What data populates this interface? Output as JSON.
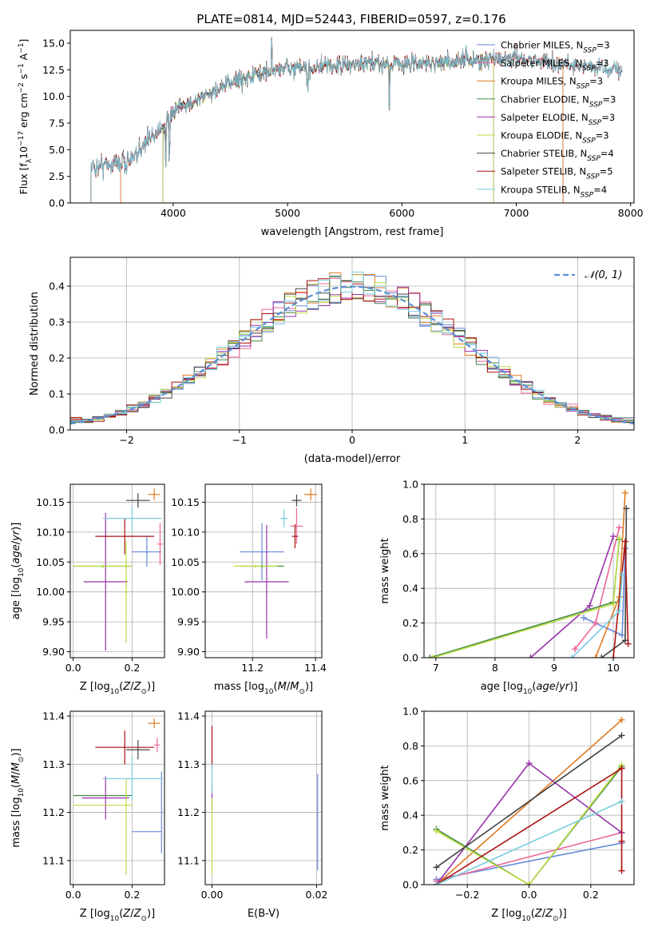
{
  "title": "PLATE=0814, MJD=52443, FIBERID=0597, z=0.176",
  "colors": {
    "chabrier_miles": "#6688dd",
    "salpeter_miles": "#ee6699",
    "kroupa_miles": "#e07a20",
    "chabrier_elodie": "#448844",
    "salpeter_elodie": "#9933aa",
    "kroupa_elodie": "#bbdd44",
    "chabrier_stelib": "#444444",
    "salpeter_stelib": "#aa1111",
    "kroupa_stelib": "#77ccdd",
    "normal_curve": "#5b8fd6"
  },
  "chart_data": [
    {
      "id": "spectrum",
      "type": "line",
      "xlabel": "wavelength [Angstrom, rest frame]",
      "ylabel": "Flux [f_λ 10^-17 erg cm^-2 s^-1 A^-1]",
      "xlim": [
        3100,
        8030
      ],
      "ylim": [
        0,
        16.2
      ],
      "xticks": [
        4000,
        5000,
        6000,
        7000,
        8000
      ],
      "yticks": [
        0.0,
        2.5,
        5.0,
        7.5,
        10.0,
        12.5,
        15.0
      ],
      "grid": false,
      "legend_position": "top-right",
      "data_range": [
        3280,
        7930
      ],
      "series": [
        {
          "name": "Chabrier MILES, N_SSP=3",
          "start": 3540,
          "end": 7410
        },
        {
          "name": "Salpeter MILES, N_SSP=3",
          "start": 3540,
          "end": 7410
        },
        {
          "name": "Kroupa MILES, N_SSP=3",
          "start": 3540,
          "end": 7410
        },
        {
          "name": "Chabrier ELODIE, N_SSP=3",
          "start": 3910,
          "end": 6800
        },
        {
          "name": "Salpeter ELODIE, N_SSP=3",
          "start": 3910,
          "end": 6800
        },
        {
          "name": "Kroupa ELODIE, N_SSP=3",
          "start": 3910,
          "end": 6800
        },
        {
          "name": "Chabrier STELIB, N_SSP=4",
          "start": 3280,
          "end": 7930
        },
        {
          "name": "Salpeter STELIB, N_SSP=5",
          "start": 3280,
          "end": 7930
        },
        {
          "name": "Kroupa STELIB, N_SSP=4",
          "start": 3280,
          "end": 7930
        }
      ]
    },
    {
      "id": "residuals",
      "type": "histogram",
      "xlabel": "(data-model)/error",
      "ylabel": "Normed distribution",
      "xlim": [
        -2.5,
        2.5
      ],
      "ylim": [
        0,
        0.48
      ],
      "xticks": [
        -2,
        -1,
        0,
        1,
        2
      ],
      "yticks": [
        0.0,
        0.1,
        0.2,
        0.3,
        0.4
      ],
      "grid": true,
      "legend_position": "top-right",
      "bin_width": 0.1,
      "overlay": "N(0,1)",
      "legend_label": "𝒩(0, 1)"
    },
    {
      "id": "age_vs_Z",
      "type": "errorbar",
      "xlabel": "Z [log10(Z/Z⊙)]",
      "ylabel": "age [log10(age/yr)]",
      "xlim": [
        -0.01,
        0.31
      ],
      "ylim": [
        9.89,
        10.18
      ],
      "xticks": [
        0.0,
        0.2
      ],
      "xticklabels": [
        "0.0",
        "0.2"
      ],
      "yticks": [
        9.9,
        9.95,
        10.0,
        10.05,
        10.1,
        10.15
      ],
      "grid": true,
      "points": [
        {
          "model": "chabrier_miles",
          "x": 0.25,
          "xerr": 0.05,
          "y": 10.067,
          "yerr": 0.025
        },
        {
          "model": "salpeter_miles",
          "x": 0.295,
          "xerr": 0.01,
          "y": 10.08,
          "yerr": 0.035
        },
        {
          "model": "kroupa_miles",
          "x": 0.275,
          "xerr": 0.02,
          "y": 10.163,
          "yerr": 0.01
        },
        {
          "model": "chabrier_elodie",
          "x": 0.1,
          "xerr": 0.1,
          "y": 10.043,
          "yerr": 0.003
        },
        {
          "model": "salpeter_elodie",
          "x": 0.11,
          "xerr": 0.075,
          "y": 10.017,
          "yerr": 0.115
        },
        {
          "model": "kroupa_elodie",
          "x": 0.1,
          "xerr": 0.1,
          "y": 10.043,
          "yerr": 0.003
        },
        {
          "model": "chabrier_stelib",
          "x": 0.22,
          "xerr": 0.04,
          "y": 10.153,
          "yerr": 0.012
        },
        {
          "model": "salpeter_stelib",
          "x": 0.175,
          "xerr": 0.1,
          "y": 10.093,
          "yerr": 0.03
        },
        {
          "model": "kroupa_stelib",
          "x": 0.2,
          "xerr": 0.1,
          "y": 10.123,
          "yerr": 0.02
        },
        {
          "model": "kroupa_elodie",
          "x": 0.18,
          "xerr": 0.005,
          "y": 10.0,
          "yerr": 0.085
        }
      ]
    },
    {
      "id": "age_vs_mass",
      "type": "errorbar",
      "xlabel": "mass [log10(M/M⊙)]",
      "ylabel": "",
      "xlim": [
        11.05,
        11.42
      ],
      "ylim": [
        9.89,
        10.18
      ],
      "xticks": [
        11.2,
        11.4
      ],
      "xticklabels": [
        "11.2",
        "11.4"
      ],
      "yticks": [
        9.9,
        9.95,
        10.0,
        10.05,
        10.1,
        10.15
      ],
      "grid": true,
      "points": [
        {
          "model": "chabrier_miles",
          "x": 11.23,
          "xerr": 0.07,
          "y": 10.067,
          "yerr": 0.048
        },
        {
          "model": "salpeter_miles",
          "x": 11.34,
          "xerr": 0.02,
          "y": 10.11,
          "yerr": 0.03
        },
        {
          "model": "kroupa_miles",
          "x": 11.385,
          "xerr": 0.02,
          "y": 10.163,
          "yerr": 0.01
        },
        {
          "model": "chabrier_elodie",
          "x": 11.23,
          "xerr": 0.07,
          "y": 10.043,
          "yerr": 0.003
        },
        {
          "model": "salpeter_elodie",
          "x": 11.245,
          "xerr": 0.07,
          "y": 10.017,
          "yerr": 0.095
        },
        {
          "model": "kroupa_elodie",
          "x": 11.21,
          "xerr": 0.07,
          "y": 10.043,
          "yerr": 0.003
        },
        {
          "model": "chabrier_stelib",
          "x": 11.34,
          "xerr": 0.015,
          "y": 10.153,
          "yerr": 0.01
        },
        {
          "model": "salpeter_stelib",
          "x": 11.335,
          "xerr": 0.01,
          "y": 10.093,
          "yerr": 0.02
        },
        {
          "model": "kroupa_stelib",
          "x": 11.3,
          "xerr": 0.012,
          "y": 10.123,
          "yerr": 0.015
        }
      ]
    },
    {
      "id": "weight_vs_age",
      "type": "line+markers",
      "xlabel": "age [log10(age/yr)]",
      "ylabel": "mass weight",
      "xlim": [
        6.8,
        10.35
      ],
      "ylim": [
        0,
        1.0
      ],
      "xticks": [
        7,
        8,
        9,
        10
      ],
      "yticks": [
        0.0,
        0.2,
        0.4,
        0.6,
        0.8,
        1.0
      ],
      "grid": true,
      "series": [
        {
          "model": "chabrier_miles",
          "x": [
            9.5,
            10.15,
            10.2
          ],
          "y": [
            0.23,
            0.13,
            0.63
          ]
        },
        {
          "model": "salpeter_miles",
          "x": [
            9.35,
            9.7,
            10.1
          ],
          "y": [
            0.05,
            0.2,
            0.75
          ]
        },
        {
          "model": "kroupa_miles",
          "x": [
            9.7,
            10.1,
            10.2
          ],
          "y": [
            0.0,
            0.35,
            0.95
          ]
        },
        {
          "model": "chabrier_elodie",
          "x": [
            6.9,
            10.0,
            10.1
          ],
          "y": [
            0.0,
            0.32,
            0.68
          ]
        },
        {
          "model": "salpeter_elodie",
          "x": [
            8.6,
            9.6,
            10.0
          ],
          "y": [
            0.0,
            0.3,
            0.7
          ]
        },
        {
          "model": "kroupa_elodie",
          "x": [
            6.95,
            10.0,
            10.1
          ],
          "y": [
            0.0,
            0.31,
            0.69
          ]
        },
        {
          "model": "chabrier_stelib",
          "x": [
            9.8,
            10.2,
            10.22
          ],
          "y": [
            0.0,
            0.1,
            0.86
          ]
        },
        {
          "model": "salpeter_stelib",
          "x": [
            10.0,
            10.2,
            10.25
          ],
          "y": [
            0.0,
            0.67,
            0.08
          ]
        },
        {
          "model": "kroupa_stelib",
          "x": [
            9.3,
            10.1,
            10.15
          ],
          "y": [
            0.0,
            0.27,
            0.48
          ]
        }
      ]
    },
    {
      "id": "mass_vs_Z",
      "type": "errorbar",
      "xlabel": "Z [log10(Z/Z⊙)]",
      "ylabel": "mass [log10(M/M⊙)]",
      "xlim": [
        -0.01,
        0.31
      ],
      "ylim": [
        11.05,
        11.41
      ],
      "xticks": [
        0.0,
        0.2
      ],
      "xticklabels": [
        "0.0",
        "0.2"
      ],
      "yticks": [
        11.1,
        11.2,
        11.3,
        11.4
      ],
      "grid": true,
      "points": [
        {
          "model": "chabrier_miles",
          "x": 0.25,
          "xerr": 0.05,
          "y": 11.16,
          "yerr": 0.0
        },
        {
          "model": "chabrier_miles",
          "x": 0.3,
          "xerr": 0.0,
          "y": 11.2,
          "yerr": 0.085
        },
        {
          "model": "salpeter_miles",
          "x": 0.285,
          "xerr": 0.01,
          "y": 11.34,
          "yerr": 0.015
        },
        {
          "model": "kroupa_miles",
          "x": 0.275,
          "xerr": 0.02,
          "y": 11.385,
          "yerr": 0.01
        },
        {
          "model": "chabrier_elodie",
          "x": 0.1,
          "xerr": 0.1,
          "y": 11.235,
          "yerr": 0.0
        },
        {
          "model": "salpeter_elodie",
          "x": 0.11,
          "xerr": 0.08,
          "y": 11.23,
          "yerr": 0.045
        },
        {
          "model": "kroupa_elodie",
          "x": 0.1,
          "xerr": 0.1,
          "y": 11.215,
          "yerr": 0.0
        },
        {
          "model": "kroupa_elodie",
          "x": 0.18,
          "xerr": 0.0,
          "y": 11.17,
          "yerr": 0.1
        },
        {
          "model": "chabrier_stelib",
          "x": 0.22,
          "xerr": 0.04,
          "y": 11.33,
          "yerr": 0.02
        },
        {
          "model": "salpeter_stelib",
          "x": 0.175,
          "xerr": 0.1,
          "y": 11.335,
          "yerr": 0.035
        },
        {
          "model": "kroupa_stelib",
          "x": 0.2,
          "xerr": 0.1,
          "y": 11.27,
          "yerr": 0.045
        }
      ]
    },
    {
      "id": "mass_vs_EBV",
      "type": "errorbar",
      "xlabel": "E(B-V)",
      "ylabel": "",
      "xlim": [
        -0.0013,
        0.021
      ],
      "ylim": [
        11.05,
        11.41
      ],
      "xticks": [
        0.0,
        0.02
      ],
      "xticklabels": [
        "0.00",
        "0.02"
      ],
      "yticks": [
        11.1,
        11.2,
        11.3,
        11.4
      ],
      "grid": true,
      "points": [
        {
          "model": "chabrier_miles",
          "x": 0.0202,
          "xerr": 0.0,
          "y": 11.18,
          "yerr": 0.1
        },
        {
          "model": "salpeter_stelib",
          "x": 0.0,
          "xerr": 0.0,
          "y": 11.335,
          "yerr": 0.045
        },
        {
          "model": "salpeter_elodie",
          "x": 0.0,
          "xerr": 0.0,
          "y": 11.23,
          "yerr": 0.03
        },
        {
          "model": "kroupa_elodie",
          "x": 0.0,
          "xerr": 0.0,
          "y": 11.15,
          "yerr": 0.08
        },
        {
          "model": "kroupa_stelib",
          "x": 0.0,
          "xerr": 0.0,
          "y": 11.27,
          "yerr": 0.03
        }
      ]
    },
    {
      "id": "weight_vs_Z",
      "type": "line+markers",
      "xlabel": "Z [log10(Z/Z⊙)]",
      "ylabel": "mass weight",
      "xlim": [
        -0.34,
        0.34
      ],
      "ylim": [
        0,
        1.0
      ],
      "xticks": [
        -0.2,
        0.0,
        0.2
      ],
      "xticklabels": [
        "−0.2",
        "0.0",
        "0.2"
      ],
      "yticks": [
        0.0,
        0.2,
        0.4,
        0.6,
        0.8,
        1.0
      ],
      "grid": true,
      "series": [
        {
          "model": "chabrier_miles",
          "x": [
            -0.3,
            0.3
          ],
          "y": [
            0.03,
            0.24
          ]
        },
        {
          "model": "salpeter_miles",
          "x": [
            -0.3,
            0.3
          ],
          "y": [
            0.02,
            0.3
          ]
        },
        {
          "model": "kroupa_miles",
          "x": [
            -0.3,
            0.3
          ],
          "y": [
            0.0,
            0.95
          ]
        },
        {
          "model": "chabrier_elodie",
          "x": [
            -0.3,
            0.0,
            0.3
          ],
          "y": [
            0.32,
            0.0,
            0.68
          ]
        },
        {
          "model": "salpeter_elodie",
          "x": [
            -0.3,
            0.0,
            0.3
          ],
          "y": [
            0.0,
            0.7,
            0.3
          ]
        },
        {
          "model": "kroupa_elodie",
          "x": [
            -0.3,
            0.0,
            0.3
          ],
          "y": [
            0.31,
            0.0,
            0.69
          ]
        },
        {
          "model": "chabrier_stelib",
          "x": [
            -0.3,
            0.3
          ],
          "y": [
            0.1,
            0.86
          ]
        },
        {
          "model": "salpeter_stelib",
          "x": [
            -0.3,
            0.3,
            0.3,
            0.3
          ],
          "y": [
            0.0,
            0.67,
            0.25,
            0.08
          ]
        },
        {
          "model": "kroupa_stelib",
          "x": [
            -0.3,
            0.3
          ],
          "y": [
            0.0,
            0.48
          ]
        }
      ]
    }
  ]
}
